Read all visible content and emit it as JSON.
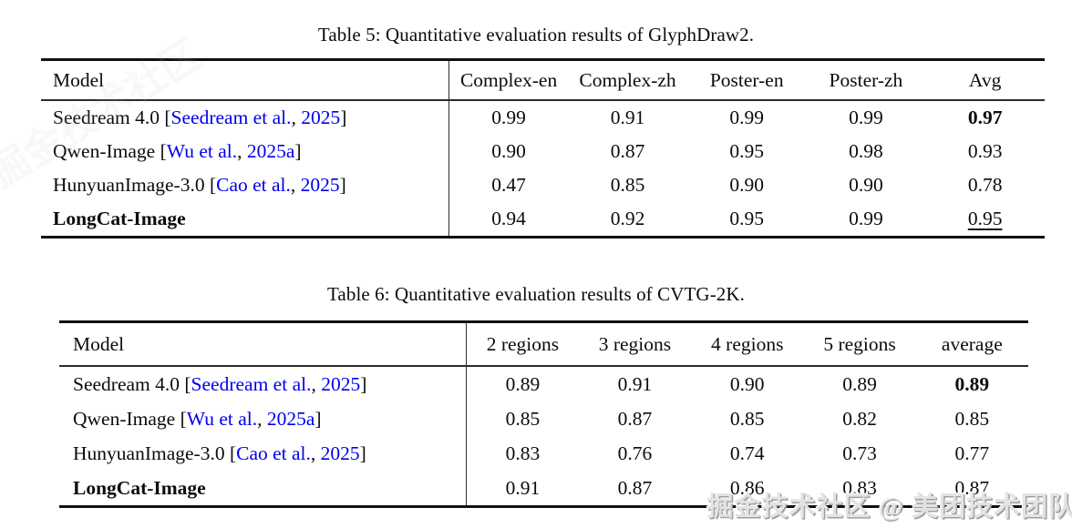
{
  "link_color": "#0000EE",
  "watermark": {
    "bottom_text": "掘金技术社区 @ 美团技术团队",
    "faint_diagonal_text": "掘金技术社区"
  },
  "table5": {
    "caption": "Table 5: Quantitative evaluation results of GlyphDraw2.",
    "columns": [
      "Model",
      "Complex-en",
      "Complex-zh",
      "Poster-en",
      "Poster-zh",
      "Avg"
    ],
    "rows": [
      {
        "model_prefix": "Seedream 4.0 [",
        "cite_authors": "Seedream et al.",
        "cite_sep": ", ",
        "cite_year": "2025",
        "model_suffix": "]",
        "values": [
          "0.99",
          "0.91",
          "0.99",
          "0.99",
          "0.97"
        ]
      },
      {
        "model_prefix": "Qwen-Image [",
        "cite_authors": "Wu et al.",
        "cite_sep": ", ",
        "cite_year": "2025a",
        "model_suffix": "]",
        "values": [
          "0.90",
          "0.87",
          "0.95",
          "0.98",
          "0.93"
        ]
      },
      {
        "model_prefix": "HunyuanImage-3.0 [",
        "cite_authors": "Cao et al.",
        "cite_sep": ", ",
        "cite_year": "2025",
        "model_suffix": "]",
        "values": [
          "0.47",
          "0.85",
          "0.90",
          "0.90",
          "0.78"
        ]
      },
      {
        "model_prefix": "LongCat-Image",
        "values": [
          "0.94",
          "0.92",
          "0.95",
          "0.99",
          "0.95"
        ]
      }
    ]
  },
  "table6": {
    "caption": "Table 6: Quantitative evaluation results of CVTG-2K.",
    "columns": [
      "Model",
      "2 regions",
      "3 regions",
      "4 regions",
      "5 regions",
      "average"
    ],
    "rows": [
      {
        "model_prefix": "Seedream 4.0 [",
        "cite_authors": "Seedream et al.",
        "cite_sep": ", ",
        "cite_year": "2025",
        "model_suffix": "]",
        "values": [
          "0.89",
          "0.91",
          "0.90",
          "0.89",
          "0.89"
        ]
      },
      {
        "model_prefix": "Qwen-Image [",
        "cite_authors": "Wu et al.",
        "cite_sep": ", ",
        "cite_year": "2025a",
        "model_suffix": "]",
        "values": [
          "0.85",
          "0.87",
          "0.85",
          "0.82",
          "0.85"
        ]
      },
      {
        "model_prefix": "HunyuanImage-3.0 [",
        "cite_authors": "Cao et al.",
        "cite_sep": ", ",
        "cite_year": "2025",
        "model_suffix": "]",
        "values": [
          "0.83",
          "0.76",
          "0.74",
          "0.73",
          "0.77"
        ]
      },
      {
        "model_prefix": "LongCat-Image",
        "values": [
          "0.91",
          "0.87",
          "0.86",
          "0.83",
          "0.87"
        ]
      }
    ]
  }
}
